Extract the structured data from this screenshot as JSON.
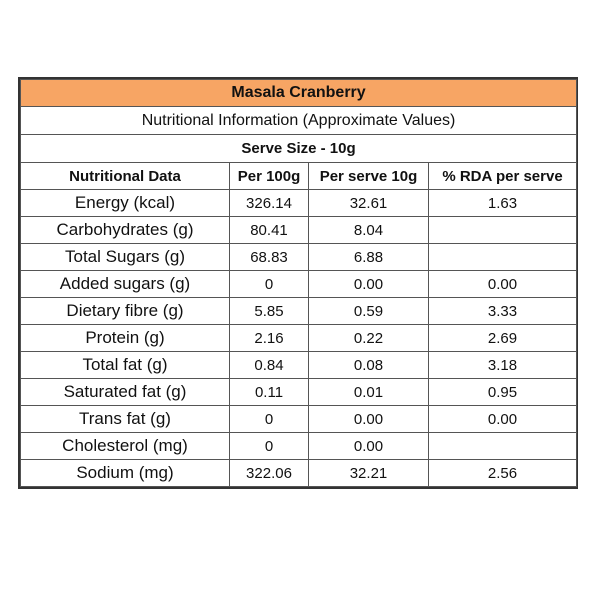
{
  "title": "Masala Cranberry",
  "info": "Nutritional Information (Approximate Values)",
  "serve_size": "Serve Size - 10g",
  "headers": [
    "Nutritional Data",
    "Per 100g",
    "Per serve 10g",
    "% RDA per serve"
  ],
  "rows": [
    {
      "name": "Energy (kcal)",
      "per100": "326.14",
      "perServe": "32.61",
      "rda": "1.63"
    },
    {
      "name": "Carbohydrates (g)",
      "per100": "80.41",
      "perServe": "8.04",
      "rda": ""
    },
    {
      "name": "Total Sugars (g)",
      "per100": "68.83",
      "perServe": "6.88",
      "rda": ""
    },
    {
      "name": "Added sugars (g)",
      "per100": "0",
      "perServe": "0.00",
      "rda": "0.00"
    },
    {
      "name": "Dietary fibre (g)",
      "per100": "5.85",
      "perServe": "0.59",
      "rda": "3.33"
    },
    {
      "name": "Protein (g)",
      "per100": "2.16",
      "perServe": "0.22",
      "rda": "2.69"
    },
    {
      "name": "Total fat (g)",
      "per100": "0.84",
      "perServe": "0.08",
      "rda": "3.18"
    },
    {
      "name": "Saturated fat (g)",
      "per100": "0.11",
      "perServe": "0.01",
      "rda": "0.95"
    },
    {
      "name": "Trans fat (g)",
      "per100": "0",
      "perServe": "0.00",
      "rda": "0.00"
    },
    {
      "name": "Cholesterol (mg)",
      "per100": "0",
      "perServe": "0.00",
      "rda": ""
    },
    {
      "name": "Sodium (mg)",
      "per100": "322.06",
      "perServe": "32.21",
      "rda": "2.56"
    }
  ],
  "colors": {
    "title_bg": "#f7a564",
    "border": "#555555"
  }
}
